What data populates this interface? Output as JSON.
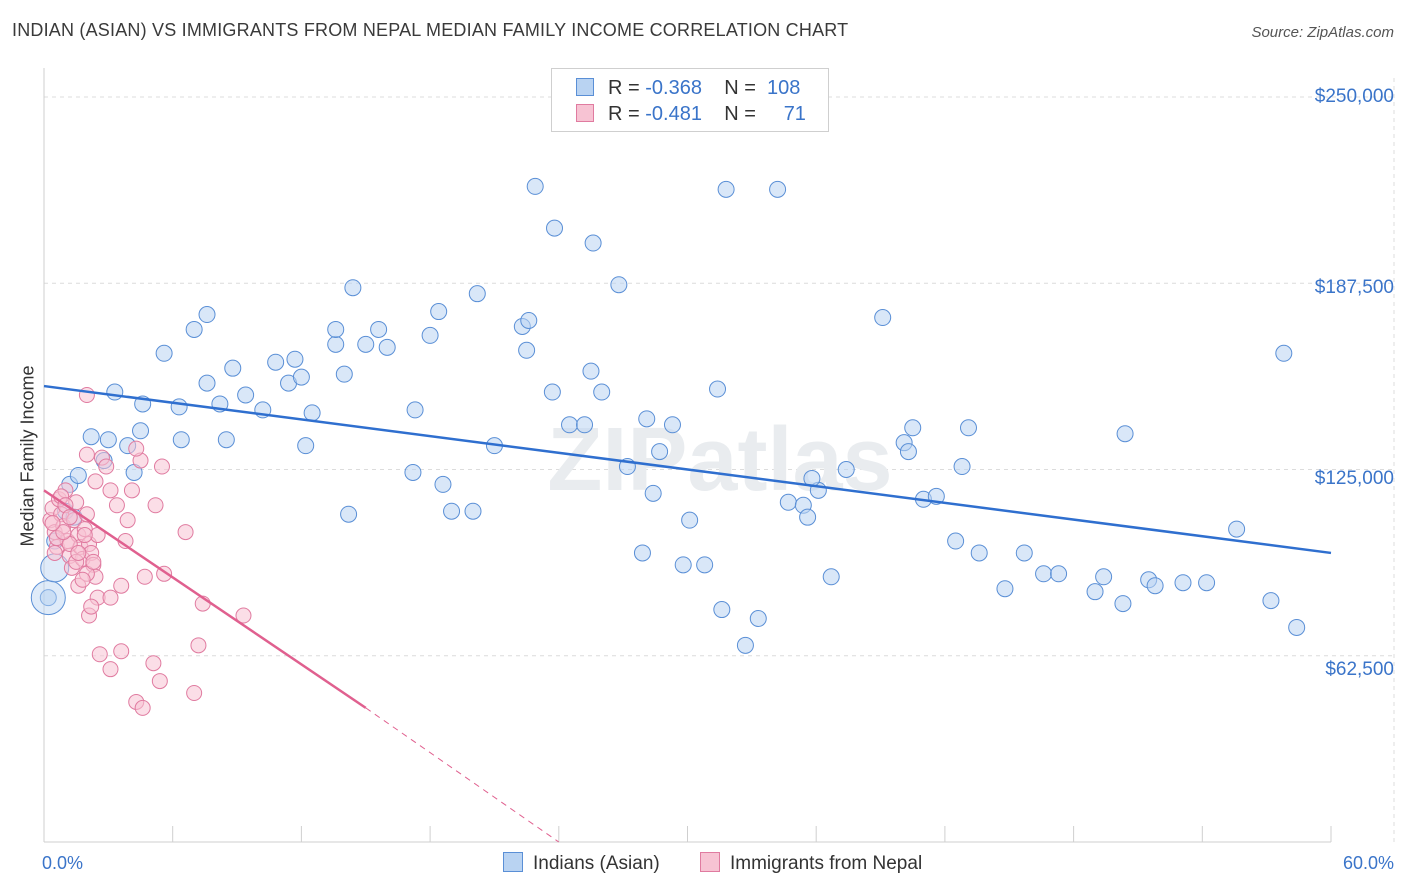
{
  "title": "INDIAN (ASIAN) VS IMMIGRANTS FROM NEPAL MEDIAN FAMILY INCOME CORRELATION CHART",
  "source": "Source: ZipAtlas.com",
  "watermark": "ZIPatlas",
  "legend": {
    "rows": [
      {
        "r_label": "R = ",
        "r_value": "-0.368",
        "n_label": "N = ",
        "n_value": "108",
        "fill": "#b9d3f2",
        "stroke": "#5a8fd6"
      },
      {
        "r_label": "R = ",
        "r_value": "-0.481",
        "n_label": "N = ",
        "n_value": "71",
        "fill": "#f7c3d3",
        "stroke": "#e07ba0"
      }
    ]
  },
  "chart_data": {
    "type": "scatter",
    "xlabel": "",
    "ylabel": "Median Family Income",
    "xlim": [
      0,
      60
    ],
    "ylim": [
      0,
      260000
    ],
    "x_tick_labels": {
      "left": "0.0%",
      "right": "60.0%"
    },
    "y_tick_labels": [
      "$250,000",
      "$187,500",
      "$125,000",
      "$62,500"
    ],
    "y_ticks": [
      250000,
      187500,
      125000,
      62500
    ],
    "series": [
      {
        "name": "Indians (Asian)",
        "color": "#5a8fd6",
        "fill": "#b9d3f2",
        "trend": {
          "x0": 0,
          "y0": 153000,
          "x1": 60,
          "y1": 97000
        },
        "points": [
          [
            1.0,
            111000
          ],
          [
            0.5,
            101000
          ],
          [
            1.2,
            120000
          ],
          [
            1.4,
            109000
          ],
          [
            1.6,
            123000
          ],
          [
            2.2,
            136000
          ],
          [
            3.0,
            135000
          ],
          [
            2.8,
            128000
          ],
          [
            4.6,
            147000
          ],
          [
            4.5,
            138000
          ],
          [
            3.3,
            151000
          ],
          [
            3.9,
            133000
          ],
          [
            4.2,
            124000
          ],
          [
            5.6,
            164000
          ],
          [
            6.3,
            146000
          ],
          [
            6.4,
            135000
          ],
          [
            7.6,
            154000
          ],
          [
            7.0,
            172000
          ],
          [
            7.6,
            177000
          ],
          [
            8.2,
            147000
          ],
          [
            8.5,
            135000
          ],
          [
            9.4,
            150000
          ],
          [
            8.8,
            159000
          ],
          [
            10.2,
            145000
          ],
          [
            11.4,
            154000
          ],
          [
            12.0,
            156000
          ],
          [
            10.8,
            161000
          ],
          [
            11.7,
            162000
          ],
          [
            12.5,
            144000
          ],
          [
            13.6,
            167000
          ],
          [
            14.4,
            186000
          ],
          [
            13.6,
            172000
          ],
          [
            15.0,
            167000
          ],
          [
            17.3,
            145000
          ],
          [
            18.0,
            170000
          ],
          [
            18.4,
            178000
          ],
          [
            16.0,
            166000
          ],
          [
            14.0,
            157000
          ],
          [
            12.2,
            133000
          ],
          [
            15.6,
            172000
          ],
          [
            14.2,
            110000
          ],
          [
            17.2,
            124000
          ],
          [
            18.6,
            120000
          ],
          [
            19.0,
            111000
          ],
          [
            20.0,
            111000
          ],
          [
            21.0,
            133000
          ],
          [
            22.3,
            173000
          ],
          [
            22.6,
            175000
          ],
          [
            20.2,
            184000
          ],
          [
            22.5,
            165000
          ],
          [
            23.7,
            151000
          ],
          [
            24.5,
            140000
          ],
          [
            25.2,
            140000
          ],
          [
            25.5,
            158000
          ],
          [
            26.0,
            151000
          ],
          [
            26.8,
            187000
          ],
          [
            23.8,
            206000
          ],
          [
            22.9,
            220000
          ],
          [
            25.6,
            201000
          ],
          [
            27.2,
            126000
          ],
          [
            28.7,
            131000
          ],
          [
            28.1,
            142000
          ],
          [
            28.4,
            117000
          ],
          [
            29.3,
            140000
          ],
          [
            27.9,
            97000
          ],
          [
            29.8,
            93000
          ],
          [
            30.1,
            108000
          ],
          [
            30.8,
            93000
          ],
          [
            31.4,
            152000
          ],
          [
            31.8,
            219000
          ],
          [
            32.7,
            66000
          ],
          [
            31.6,
            78000
          ],
          [
            33.3,
            75000
          ],
          [
            34.2,
            219000
          ],
          [
            34.7,
            114000
          ],
          [
            35.4,
            113000
          ],
          [
            36.1,
            118000
          ],
          [
            35.8,
            122000
          ],
          [
            35.6,
            109000
          ],
          [
            36.7,
            89000
          ],
          [
            37.4,
            125000
          ],
          [
            39.1,
            176000
          ],
          [
            40.5,
            139000
          ],
          [
            40.1,
            134000
          ],
          [
            40.3,
            131000
          ],
          [
            41.0,
            115000
          ],
          [
            41.6,
            116000
          ],
          [
            42.8,
            126000
          ],
          [
            43.1,
            139000
          ],
          [
            42.5,
            101000
          ],
          [
            43.6,
            97000
          ],
          [
            44.8,
            85000
          ],
          [
            45.7,
            97000
          ],
          [
            46.6,
            90000
          ],
          [
            47.3,
            90000
          ],
          [
            49.0,
            84000
          ],
          [
            49.4,
            89000
          ],
          [
            50.3,
            80000
          ],
          [
            50.4,
            137000
          ],
          [
            51.5,
            88000
          ],
          [
            51.8,
            86000
          ],
          [
            53.1,
            87000
          ],
          [
            54.2,
            87000
          ],
          [
            55.6,
            105000
          ],
          [
            57.8,
            164000
          ],
          [
            57.2,
            81000
          ],
          [
            58.4,
            72000
          ],
          [
            0.2,
            82000
          ]
        ]
      },
      {
        "name": "Immigrants from Nepal",
        "color": "#e07ba0",
        "fill": "#f7c3d3",
        "trend": {
          "x0": 0,
          "y0": 118000,
          "x1": 15,
          "y1": 45000
        },
        "trend_dashed_to": {
          "x": 24,
          "y": 0
        },
        "points": [
          [
            0.3,
            108000
          ],
          [
            0.4,
            112000
          ],
          [
            0.5,
            104000
          ],
          [
            0.6,
            99000
          ],
          [
            0.7,
            115000
          ],
          [
            0.8,
            110000
          ],
          [
            0.9,
            106000
          ],
          [
            1.0,
            118000
          ],
          [
            1.1,
            101000
          ],
          [
            1.2,
            96000
          ],
          [
            1.3,
            92000
          ],
          [
            1.4,
            108000
          ],
          [
            1.5,
            114000
          ],
          [
            1.6,
            103000
          ],
          [
            1.7,
            99000
          ],
          [
            1.8,
            95000
          ],
          [
            1.9,
            105000
          ],
          [
            2.0,
            110000
          ],
          [
            2.1,
            100000
          ],
          [
            2.2,
            97000
          ],
          [
            2.3,
            93000
          ],
          [
            2.4,
            89000
          ],
          [
            2.5,
            103000
          ],
          [
            2.0,
            130000
          ],
          [
            2.7,
            129000
          ],
          [
            2.9,
            126000
          ],
          [
            3.1,
            118000
          ],
          [
            2.4,
            121000
          ],
          [
            0.8,
            116000
          ],
          [
            0.6,
            102000
          ],
          [
            1.0,
            113000
          ],
          [
            1.2,
            109000
          ],
          [
            2.0,
            90000
          ],
          [
            2.3,
            94000
          ],
          [
            1.9,
            103000
          ],
          [
            1.6,
            86000
          ],
          [
            2.5,
            82000
          ],
          [
            2.1,
            76000
          ],
          [
            3.1,
            82000
          ],
          [
            3.6,
            86000
          ],
          [
            3.4,
            113000
          ],
          [
            3.9,
            108000
          ],
          [
            4.1,
            118000
          ],
          [
            3.8,
            101000
          ],
          [
            4.5,
            128000
          ],
          [
            4.3,
            132000
          ],
          [
            4.7,
            89000
          ],
          [
            5.2,
            113000
          ],
          [
            5.5,
            126000
          ],
          [
            5.6,
            90000
          ],
          [
            6.6,
            104000
          ],
          [
            7.4,
            80000
          ],
          [
            7.2,
            66000
          ],
          [
            7.0,
            50000
          ],
          [
            5.4,
            54000
          ],
          [
            5.1,
            60000
          ],
          [
            4.3,
            47000
          ],
          [
            4.6,
            45000
          ],
          [
            3.6,
            64000
          ],
          [
            3.1,
            58000
          ],
          [
            2.6,
            63000
          ],
          [
            2.2,
            79000
          ],
          [
            1.8,
            88000
          ],
          [
            1.5,
            94000
          ],
          [
            2.0,
            150000
          ],
          [
            9.3,
            76000
          ],
          [
            1.2,
            100000
          ],
          [
            0.9,
            104000
          ],
          [
            0.5,
            97000
          ],
          [
            0.4,
            107000
          ],
          [
            1.6,
            97000
          ]
        ]
      }
    ]
  },
  "bottom_legend": [
    "Indians (Asian)",
    "Immigrants from Nepal"
  ]
}
